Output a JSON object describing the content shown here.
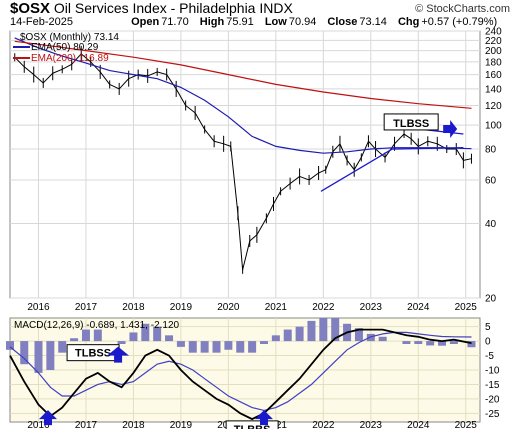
{
  "header": {
    "symbol": "$OSX",
    "name": "Oil Services Index - Philadelphia",
    "exchange": "INDX",
    "watermark": "© StockCharts.com",
    "date": "14-Feb-2025",
    "open_label": "Open",
    "open": "71.70",
    "high_label": "High",
    "high": "75.91",
    "low_label": "Low",
    "low": "70.94",
    "close_label": "Close",
    "close": "73.14",
    "chg_label": "Chg",
    "chg": "+0.57 (+0.79%)"
  },
  "colors": {
    "price": "#000000",
    "ema50": "#1c1cb0",
    "ema200": "#c01010",
    "histogram": "#8080c0",
    "macd_signal": "#4040c0",
    "trendline": "#1a1acc",
    "panel_bg": "#fdfbe8",
    "arrow": "#1a1acc"
  },
  "chart_data": [
    {
      "type": "line",
      "title": "$OSX (Monthly) 73.14",
      "legend": [
        {
          "name": "$OSX (Monthly) 73.14",
          "color": "#000000"
        },
        {
          "name": "EMA(50) 80.29",
          "color": "#1c1cb0"
        },
        {
          "name": "EMA(200) 116.89",
          "color": "#c01010"
        }
      ],
      "scale": "log",
      "ylim": [
        20,
        240
      ],
      "xlim": [
        2015.4,
        2025.3
      ],
      "x_ticks": [
        2016,
        2017,
        2018,
        2019,
        2020,
        2021,
        2022,
        2023,
        2024,
        2025
      ],
      "x_tick_labels": [
        "2016",
        "2017",
        "2018",
        "2019",
        "2020",
        "2021",
        "2022",
        "2023",
        "2024",
        "2025"
      ],
      "y_ticks": [
        20,
        40,
        60,
        80,
        100,
        120,
        140,
        160,
        180,
        200,
        220,
        240
      ],
      "y_tick_labels": [
        "20",
        "40",
        "60",
        "80",
        "100",
        "120",
        "140",
        "160",
        "180",
        "200",
        "220",
        "240"
      ],
      "series": [
        {
          "name": "$OSX (Monthly)",
          "x": [
            2015.5,
            2015.7,
            2015.9,
            2016.1,
            2016.3,
            2016.5,
            2016.7,
            2016.9,
            2017.1,
            2017.3,
            2017.5,
            2017.7,
            2017.9,
            2018.1,
            2018.3,
            2018.5,
            2018.7,
            2018.9,
            2019.1,
            2019.3,
            2019.5,
            2019.7,
            2019.9,
            2020.05,
            2020.2,
            2020.3,
            2020.45,
            2020.6,
            2020.8,
            2020.95,
            2021.1,
            2021.3,
            2021.5,
            2021.7,
            2021.9,
            2022.05,
            2022.2,
            2022.35,
            2022.5,
            2022.65,
            2022.8,
            2022.95,
            2023.1,
            2023.3,
            2023.5,
            2023.7,
            2023.85,
            2024.0,
            2024.2,
            2024.4,
            2024.6,
            2024.8,
            2024.95,
            2025.12
          ],
          "values": [
            188,
            172,
            160,
            148,
            162,
            168,
            176,
            194,
            180,
            164,
            146,
            140,
            154,
            160,
            158,
            164,
            160,
            140,
            120,
            112,
            96,
            86,
            84,
            82,
            44,
            26,
            34,
            36,
            42,
            48,
            54,
            58,
            62,
            60,
            64,
            66,
            78,
            84,
            72,
            66,
            74,
            86,
            80,
            74,
            84,
            92,
            88,
            82,
            86,
            84,
            80,
            80,
            72,
            73.14
          ]
        },
        {
          "name": "EMA(50)",
          "x": [
            2015.5,
            2016,
            2016.5,
            2017,
            2017.5,
            2018,
            2018.5,
            2019,
            2019.5,
            2020,
            2020.5,
            2021,
            2021.5,
            2022,
            2022.5,
            2023,
            2023.5,
            2024,
            2024.5,
            2025.12
          ],
          "values": [
            225,
            205,
            190,
            178,
            166,
            160,
            154,
            142,
            126,
            108,
            90,
            82,
            79,
            77,
            78,
            80,
            81,
            81,
            81,
            80.29
          ]
        },
        {
          "name": "EMA(200)",
          "x": [
            2015.5,
            2016,
            2017,
            2018,
            2019,
            2020,
            2021,
            2022,
            2023,
            2024,
            2025.12
          ],
          "values": [
            218,
            212,
            200,
            188,
            175,
            160,
            146,
            136,
            128,
            122,
            116.89
          ]
        }
      ],
      "trendlines": [
        {
          "from": [
            2021.95,
            54
          ],
          "to": [
            2023.45,
            80
          ]
        },
        {
          "from": [
            2023.45,
            80
          ],
          "to": [
            2024.95,
            81
          ]
        },
        {
          "from": [
            2023.45,
            99
          ],
          "to": [
            2024.95,
            92
          ]
        }
      ],
      "annotations": [
        {
          "text": "TLBSS",
          "x": 2023.85,
          "y": 102
        }
      ]
    },
    {
      "type": "line",
      "title": "MACD(12,26,9) -0.689, 1.431, -2.120",
      "ylim": [
        -28,
        8
      ],
      "y_ticks": [
        5,
        0,
        -5,
        -10,
        -15,
        -20,
        -25
      ],
      "y_tick_labels": [
        "5",
        "0",
        "-5",
        "-10",
        "-15",
        "-20",
        "-25"
      ],
      "series": [
        {
          "name": "MACD",
          "x": [
            2015.4,
            2015.7,
            2016.0,
            2016.25,
            2016.5,
            2016.75,
            2017.0,
            2017.25,
            2017.5,
            2017.75,
            2018.0,
            2018.25,
            2018.5,
            2018.75,
            2019.0,
            2019.25,
            2019.5,
            2019.75,
            2020.0,
            2020.25,
            2020.5,
            2020.75,
            2021.0,
            2021.25,
            2021.5,
            2021.75,
            2022.0,
            2022.25,
            2022.5,
            2022.75,
            2023.0,
            2023.25,
            2023.5,
            2023.75,
            2024.0,
            2024.25,
            2024.5,
            2024.75,
            2025.12
          ],
          "values": [
            -5,
            -14,
            -22,
            -26,
            -23,
            -18,
            -13,
            -11,
            -14,
            -16,
            -11,
            -5,
            -3,
            -5,
            -10,
            -14,
            -17,
            -20,
            -22,
            -25,
            -27,
            -25,
            -21,
            -17,
            -13,
            -8,
            -3,
            1,
            3,
            4,
            4,
            4,
            3,
            2,
            1.5,
            0.5,
            0,
            0.5,
            -0.689
          ]
        },
        {
          "name": "Signal",
          "x": [
            2015.4,
            2015.7,
            2016.0,
            2016.25,
            2016.5,
            2016.75,
            2017.0,
            2017.25,
            2017.5,
            2017.75,
            2018.0,
            2018.25,
            2018.5,
            2018.75,
            2019.0,
            2019.25,
            2019.5,
            2019.75,
            2020.0,
            2020.25,
            2020.5,
            2020.75,
            2021.0,
            2021.25,
            2021.5,
            2021.75,
            2022.0,
            2022.25,
            2022.5,
            2022.75,
            2023.0,
            2023.25,
            2023.5,
            2023.75,
            2024.0,
            2024.25,
            2024.5,
            2024.75,
            2025.12
          ],
          "values": [
            -2,
            -6,
            -11,
            -16,
            -19,
            -19,
            -17,
            -15,
            -14,
            -15,
            -14,
            -11,
            -8,
            -7,
            -8,
            -10,
            -13,
            -16,
            -19,
            -21,
            -23,
            -24,
            -23,
            -21,
            -18,
            -15,
            -11,
            -7,
            -3,
            -0.5,
            1.5,
            2.5,
            3,
            3,
            2.5,
            2,
            1.6,
            1.5,
            1.431
          ]
        },
        {
          "name": "Histogram",
          "x": [
            2015.4,
            2015.7,
            2016.0,
            2016.25,
            2016.5,
            2016.75,
            2017.0,
            2017.25,
            2017.5,
            2017.75,
            2018.0,
            2018.25,
            2018.5,
            2018.75,
            2019.0,
            2019.25,
            2019.5,
            2019.75,
            2020.0,
            2020.25,
            2020.5,
            2020.75,
            2021.0,
            2021.25,
            2021.5,
            2021.75,
            2022.0,
            2022.25,
            2022.5,
            2022.75,
            2023.0,
            2023.25,
            2023.5,
            2023.75,
            2024.0,
            2024.25,
            2024.5,
            2024.75,
            2025.12
          ],
          "values": [
            -3,
            -8,
            -11,
            -10,
            -4,
            1,
            4,
            4,
            0,
            -1,
            3,
            6,
            5,
            2,
            -2,
            -4,
            -4,
            -4,
            -3,
            -4,
            -4,
            -1,
            2,
            4,
            5,
            7,
            8,
            8,
            6,
            4.5,
            2.5,
            1.5,
            0,
            -1,
            -1,
            -1.5,
            -1.6,
            -1,
            -2.12
          ]
        }
      ],
      "annotations": [
        {
          "text": "TLBSS",
          "x": 2017.15,
          "y": -4,
          "arrow_to": [
            2017.15,
            -10
          ]
        },
        {
          "text": "TLBBS",
          "x": 2020.5,
          "y": -29,
          "arrow_to": [
            2020.75,
            -26
          ]
        }
      ],
      "arrows": [
        {
          "x": 2016.2,
          "y": -27
        },
        {
          "x": 2020.75,
          "y": -27
        }
      ]
    }
  ]
}
